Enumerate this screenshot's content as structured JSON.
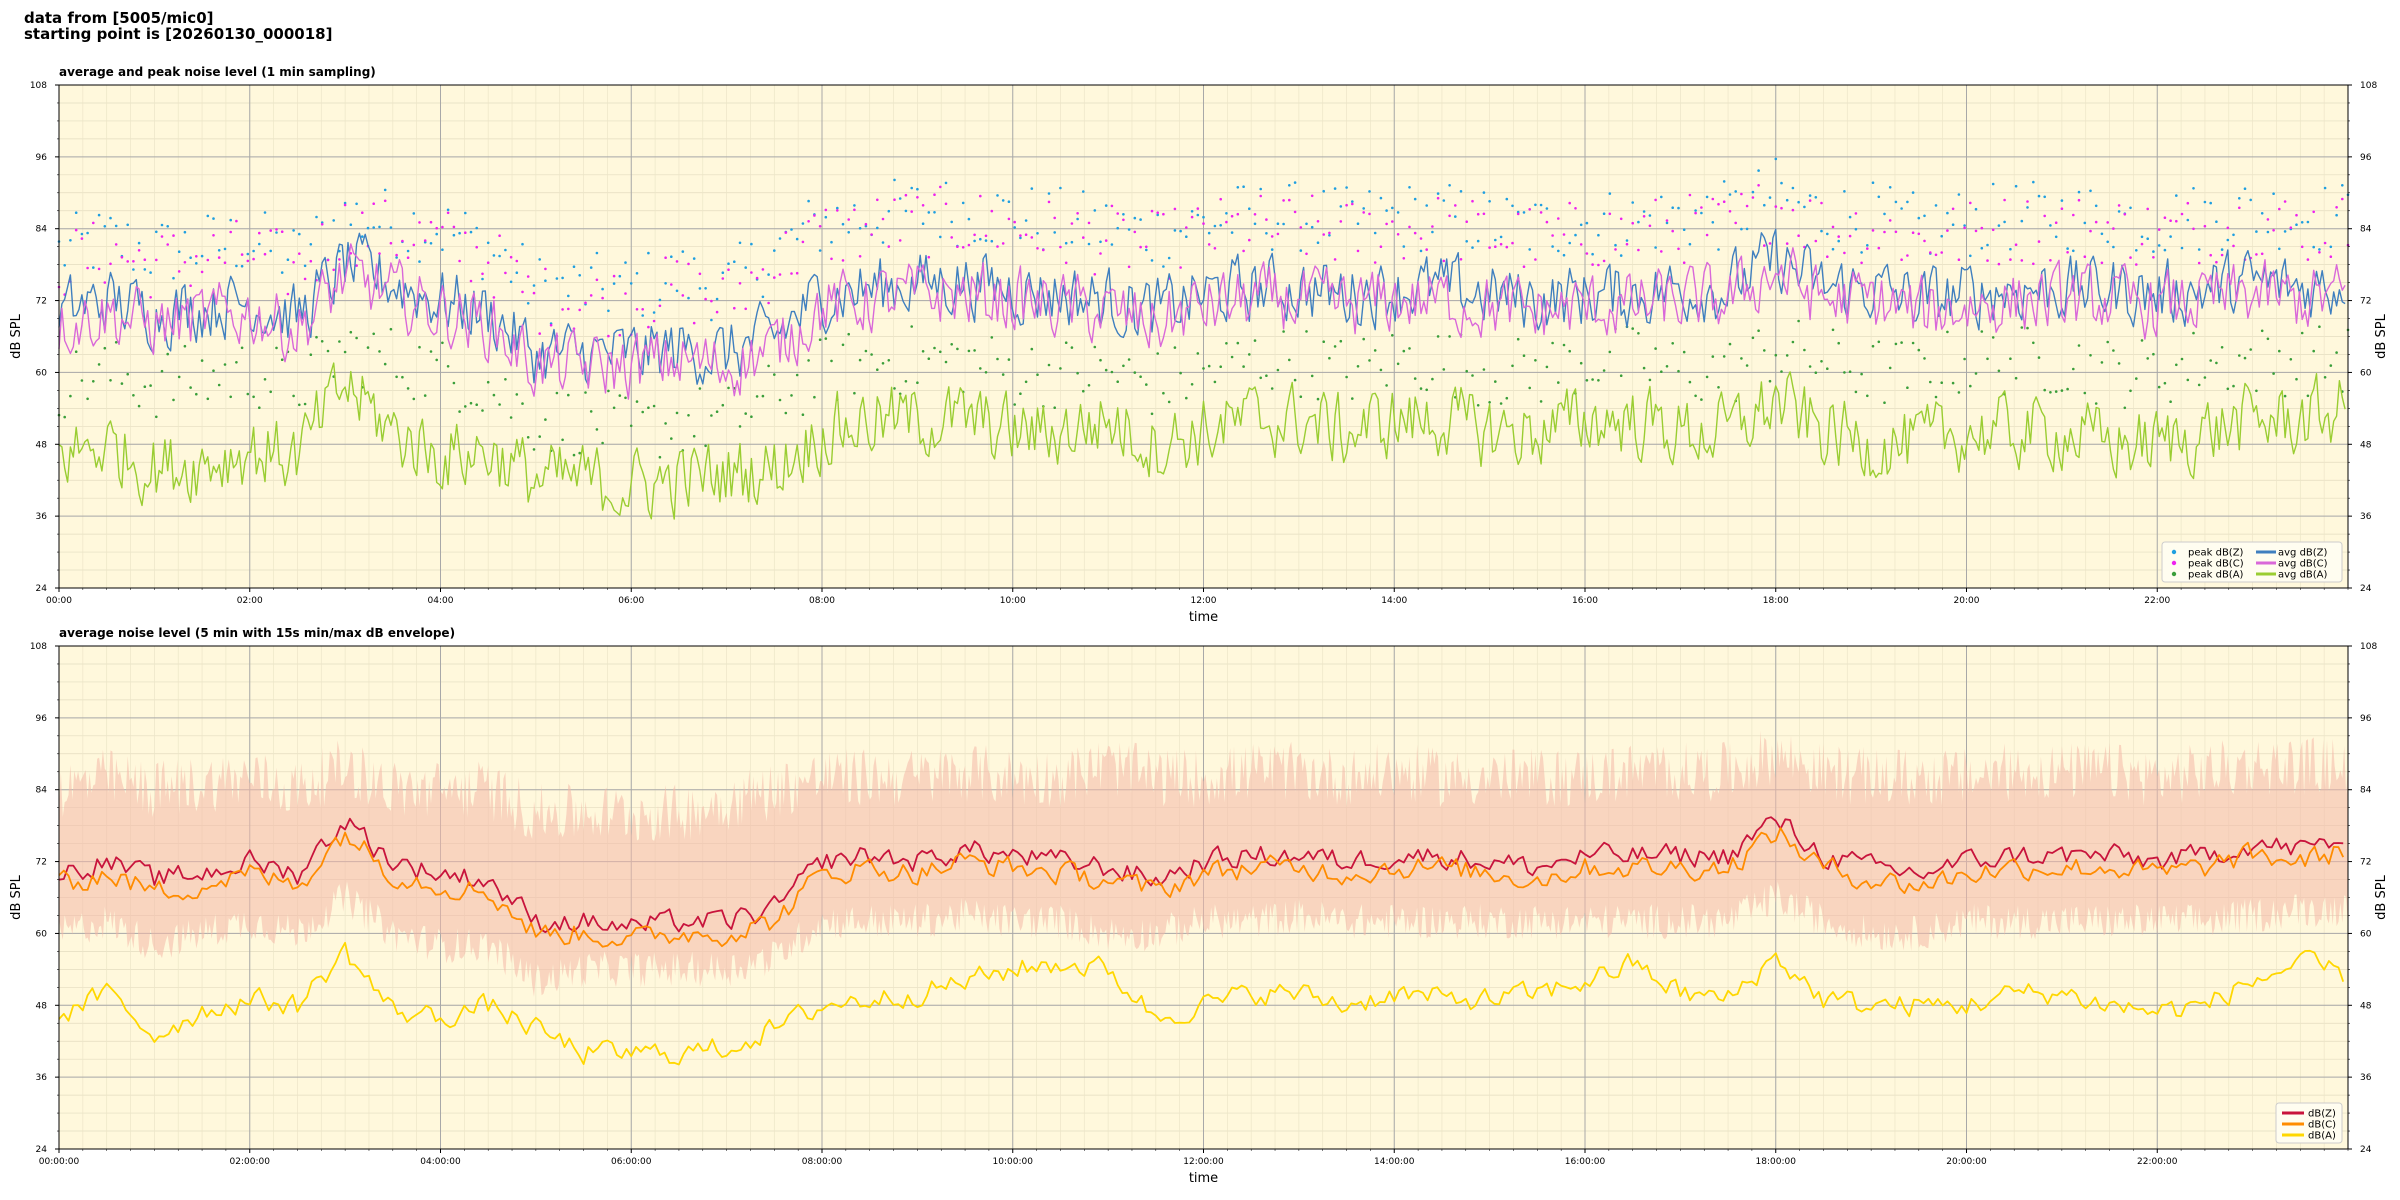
{
  "header": {
    "line1": "data from [5005/mic0]",
    "line2": "starting point is [20260130_000018]"
  },
  "chart_data": [
    {
      "type": "line",
      "title": "average and peak noise level (1 min sampling)",
      "xlabel": "time",
      "ylabel": "dB SPL",
      "ylim": [
        24,
        108
      ],
      "yticks": [
        24,
        36,
        48,
        60,
        72,
        84,
        96,
        108
      ],
      "xlim_hours": [
        0,
        24
      ],
      "xtick_labels": [
        "00:00",
        "02:00",
        "04:00",
        "06:00",
        "08:00",
        "10:00",
        "12:00",
        "14:00",
        "16:00",
        "18:00",
        "20:00",
        "22:00"
      ],
      "grid": true,
      "background": "#fff8dc",
      "legend_position": "lower-right",
      "x_hours": [
        0,
        0.5,
        1,
        1.5,
        2,
        2.5,
        3,
        3.5,
        4,
        4.5,
        5,
        5.5,
        6,
        6.5,
        7,
        7.5,
        8,
        8.5,
        9,
        9.5,
        10,
        10.5,
        11,
        11.5,
        12,
        12.5,
        13,
        13.5,
        14,
        14.5,
        15,
        15.5,
        16,
        16.5,
        17,
        17.5,
        18,
        18.5,
        19,
        19.5,
        20,
        20.5,
        21,
        21.5,
        22,
        22.5,
        23,
        23.5,
        24
      ],
      "series": [
        {
          "name": "peak dB(Z)",
          "kind": "scatter",
          "color": "#1f9fe0",
          "values": [
            80,
            82,
            80,
            81,
            82,
            79,
            86,
            85,
            84,
            81,
            74,
            74,
            74,
            76,
            74,
            80,
            85,
            86,
            87,
            87,
            86,
            85,
            84,
            83,
            85,
            86,
            86,
            85,
            86,
            86,
            85,
            84,
            85,
            85,
            86,
            86,
            90,
            86,
            86,
            84,
            85,
            86,
            86,
            86,
            85,
            86,
            87,
            86,
            86
          ]
        },
        {
          "name": "peak dB(C)",
          "kind": "scatter",
          "color": "#ee22ee",
          "values": [
            78,
            80,
            78,
            79,
            80,
            77,
            84,
            83,
            82,
            79,
            72,
            72,
            72,
            74,
            72,
            78,
            83,
            84,
            85,
            85,
            84,
            83,
            82,
            81,
            83,
            84,
            84,
            83,
            84,
            84,
            83,
            82,
            83,
            83,
            84,
            84,
            88,
            84,
            84,
            82,
            83,
            84,
            84,
            84,
            83,
            84,
            85,
            84,
            84
          ]
        },
        {
          "name": "peak dB(A)",
          "kind": "scatter",
          "color": "#3a9e3a",
          "values": [
            58,
            60,
            58,
            59,
            60,
            58,
            64,
            62,
            60,
            58,
            52,
            52,
            50,
            52,
            52,
            56,
            60,
            62,
            62,
            62,
            60,
            60,
            60,
            58,
            60,
            62,
            62,
            60,
            62,
            62,
            60,
            60,
            62,
            62,
            60,
            60,
            64,
            62,
            60,
            60,
            62,
            62,
            62,
            60,
            60,
            62,
            62,
            62,
            62
          ]
        },
        {
          "name": "avg dB(Z)",
          "kind": "line",
          "color": "#3f7fbf",
          "values": [
            70,
            72,
            70,
            71,
            72,
            69,
            78,
            75,
            72,
            70,
            63,
            63,
            63,
            64,
            63,
            66,
            73,
            74,
            75,
            75,
            74,
            73,
            72,
            70,
            73,
            74,
            74,
            73,
            74,
            74,
            73,
            72,
            73,
            73,
            74,
            74,
            79,
            74,
            74,
            72,
            73,
            74,
            74,
            74,
            73,
            74,
            75,
            74,
            75
          ]
        },
        {
          "name": "avg dB(C)",
          "kind": "line",
          "color": "#d968d9",
          "values": [
            68,
            70,
            68,
            69,
            70,
            67,
            76,
            73,
            70,
            68,
            61,
            61,
            61,
            62,
            61,
            64,
            71,
            72,
            73,
            73,
            72,
            71,
            70,
            68,
            71,
            72,
            72,
            71,
            72,
            72,
            71,
            70,
            71,
            71,
            72,
            72,
            77,
            72,
            72,
            70,
            71,
            72,
            72,
            72,
            71,
            72,
            73,
            72,
            73
          ]
        },
        {
          "name": "avg dB(A)",
          "kind": "line",
          "color": "#9acd32",
          "values": [
            46,
            48,
            44,
            45,
            47,
            46,
            58,
            50,
            46,
            47,
            42,
            42,
            41,
            42,
            43,
            44,
            50,
            52,
            52,
            52,
            50,
            50,
            52,
            48,
            50,
            52,
            52,
            50,
            52,
            52,
            50,
            50,
            52,
            52,
            50,
            50,
            55,
            50,
            48,
            48,
            50,
            50,
            50,
            48,
            48,
            50,
            52,
            52,
            54
          ]
        }
      ]
    },
    {
      "type": "line",
      "title": "average noise level (5 min with 15s min/max dB envelope)",
      "xlabel": "time",
      "ylabel": "dB SPL",
      "ylim": [
        24,
        108
      ],
      "yticks": [
        24,
        36,
        48,
        60,
        72,
        84,
        96,
        108
      ],
      "xlim_hours": [
        0,
        24
      ],
      "xtick_labels": [
        "00:00:00",
        "02:00:00",
        "04:00:00",
        "06:00:00",
        "08:00:00",
        "10:00:00",
        "12:00:00",
        "14:00:00",
        "16:00:00",
        "18:00:00",
        "20:00:00",
        "22:00:00"
      ],
      "grid": true,
      "background": "#fff8dc",
      "legend_position": "lower-right",
      "envelope_color": "#f4b8a8",
      "x_hours": [
        0,
        0.5,
        1,
        1.5,
        2,
        2.5,
        3,
        3.5,
        4,
        4.5,
        5,
        5.5,
        6,
        6.5,
        7,
        7.5,
        8,
        8.5,
        9,
        9.5,
        10,
        10.5,
        11,
        11.5,
        12,
        12.5,
        13,
        13.5,
        14,
        14.5,
        15,
        15.5,
        16,
        16.5,
        17,
        17.5,
        18,
        18.5,
        19,
        19.5,
        20,
        20.5,
        21,
        21.5,
        22,
        22.5,
        23,
        23.5,
        24
      ],
      "envelope_min": [
        60,
        62,
        58,
        60,
        62,
        60,
        66,
        60,
        58,
        58,
        52,
        54,
        54,
        54,
        54,
        56,
        62,
        62,
        62,
        63,
        62,
        62,
        60,
        60,
        62,
        62,
        63,
        62,
        62,
        62,
        62,
        62,
        62,
        62,
        62,
        62,
        66,
        62,
        60,
        60,
        62,
        62,
        62,
        62,
        62,
        62,
        63,
        64,
        64
      ],
      "envelope_max": [
        84,
        86,
        84,
        85,
        86,
        84,
        88,
        84,
        84,
        84,
        80,
        80,
        80,
        80,
        82,
        84,
        86,
        86,
        86,
        87,
        86,
        86,
        88,
        86,
        86,
        87,
        87,
        86,
        87,
        86,
        86,
        86,
        86,
        87,
        87,
        87,
        90,
        87,
        86,
        86,
        86,
        87,
        87,
        87,
        86,
        87,
        88,
        88,
        88
      ],
      "series": [
        {
          "name": "dB(Z)",
          "color": "#c8143c",
          "values": [
            70,
            72,
            69,
            70,
            72,
            70,
            79,
            72,
            70,
            69,
            62,
            62,
            61,
            62,
            62,
            64,
            72,
            73,
            72,
            74,
            73,
            72,
            71,
            69,
            72,
            73,
            73,
            72,
            73,
            73,
            72,
            71,
            73,
            73,
            73,
            73,
            79,
            73,
            71,
            70,
            72,
            73,
            73,
            73,
            72,
            73,
            75,
            74,
            76
          ]
        },
        {
          "name": "dB(C)",
          "color": "#ff8c00",
          "values": [
            68,
            70,
            67,
            68,
            70,
            68,
            77,
            70,
            68,
            67,
            60,
            60,
            59,
            60,
            60,
            62,
            70,
            71,
            70,
            72,
            71,
            70,
            69,
            67,
            70,
            71,
            71,
            70,
            71,
            71,
            70,
            69,
            71,
            71,
            71,
            71,
            77,
            71,
            69,
            68,
            70,
            71,
            71,
            71,
            70,
            71,
            73,
            72,
            74
          ]
        },
        {
          "name": "dB(A)",
          "color": "#ffd700",
          "values": [
            46,
            50,
            43,
            47,
            49,
            48,
            57,
            47,
            46,
            48,
            44,
            40,
            40,
            40,
            41,
            44,
            48,
            49,
            50,
            52,
            54,
            55,
            54,
            46,
            48,
            50,
            50,
            48,
            50,
            49,
            49,
            50,
            52,
            55,
            50,
            49,
            56,
            49,
            48,
            48,
            48,
            50,
            50,
            48,
            47,
            48,
            52,
            55,
            53
          ]
        }
      ]
    }
  ]
}
